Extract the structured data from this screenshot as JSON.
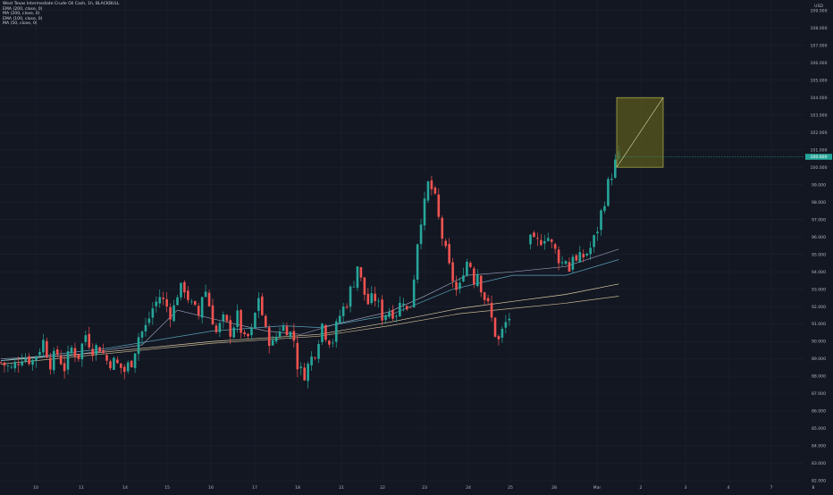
{
  "legend": {
    "title": "West Texas Intermediate Crude Oil Cash, 1h, BLACKBULL",
    "indicators": [
      "EMA (200, close, 0)",
      "MA (200, close, 0)",
      "EMA (100, close, 0)",
      "MA (50, close, 0)"
    ]
  },
  "currency": "USD",
  "current_price": "100.600",
  "colors": {
    "background": "#131722",
    "grid": "#1e2230",
    "up": "#26a69a",
    "down": "#ef5350",
    "ema200": "#d8c59a",
    "ma200": "#f5e3b5",
    "ema100": "#5fb0c8",
    "ma50": "#9fa7c2",
    "box_fill": "#5a5a1e",
    "box_stroke": "#b8b84a",
    "price_tag": "#26a69a"
  },
  "chart_data": {
    "type": "candlestick",
    "title": "West Texas Intermediate Crude Oil Cash, 1h, BLACKBULL",
    "x_ticks": [
      "10",
      "11",
      "14",
      "15",
      "16",
      "17",
      "18",
      "21",
      "22",
      "23",
      "24",
      "25",
      "28",
      "Mar",
      "2",
      "3",
      "4",
      "7",
      "8"
    ],
    "y_ticks": [
      "82.000",
      "83.000",
      "84.000",
      "85.000",
      "86.000",
      "87.000",
      "88.000",
      "89.000",
      "90.000",
      "91.000",
      "92.000",
      "93.000",
      "94.000",
      "95.000",
      "96.000",
      "97.000",
      "98.000",
      "99.000",
      "100.000",
      "101.000",
      "102.000",
      "103.000",
      "104.000",
      "105.000",
      "106.000",
      "107.000",
      "108.000",
      "109.000"
    ],
    "ylim": [
      81.8,
      109.5
    ],
    "grid": true,
    "close_path": [
      [
        0,
        88.8
      ],
      [
        3,
        88.4
      ],
      [
        6,
        89.2
      ],
      [
        9,
        88.9
      ],
      [
        12,
        90.0
      ],
      [
        14,
        88.8
      ],
      [
        16,
        89.3
      ],
      [
        18,
        88.5
      ],
      [
        20,
        89.6
      ],
      [
        22,
        89.2
      ],
      [
        24,
        90.4
      ],
      [
        26,
        89.6
      ],
      [
        28,
        89.7
      ],
      [
        30,
        88.9
      ],
      [
        32,
        88.8
      ],
      [
        34,
        88.5
      ],
      [
        35,
        88.3
      ],
      [
        37,
        88.9
      ],
      [
        39,
        90.3
      ],
      [
        41,
        90.8
      ],
      [
        43,
        91.9
      ],
      [
        45,
        92.6
      ],
      [
        47,
        92.0
      ],
      [
        48.5,
        91.5
      ],
      [
        50,
        92.8
      ],
      [
        52,
        93.1
      ],
      [
        54,
        92.0
      ],
      [
        56,
        91.5
      ],
      [
        57.5,
        93.3
      ],
      [
        59,
        92.1
      ],
      [
        61,
        90.5
      ],
      [
        63,
        91.2
      ],
      [
        65,
        90.6
      ],
      [
        67,
        91.4
      ],
      [
        69,
        90.0
      ],
      [
        71,
        90.5
      ],
      [
        73,
        92.6
      ],
      [
        75,
        90.5
      ],
      [
        77,
        89.8
      ],
      [
        79,
        90.8
      ],
      [
        81,
        90.8
      ],
      [
        83,
        90.1
      ],
      [
        84,
        88.7
      ],
      [
        85.5,
        88.0
      ],
      [
        87,
        88.6
      ],
      [
        89,
        89.5
      ],
      [
        91,
        91.0
      ],
      [
        92.5,
        90.2
      ],
      [
        94,
        90.1
      ],
      [
        96,
        91.5
      ],
      [
        98,
        92.3
      ],
      [
        100,
        93.5
      ],
      [
        101,
        94.4
      ],
      [
        102.5,
        93.0
      ],
      [
        104,
        92.2
      ],
      [
        106,
        92.5
      ],
      [
        108,
        91.5
      ],
      [
        110,
        91.8
      ],
      [
        112,
        91.7
      ],
      [
        114,
        92.5
      ],
      [
        115.5,
        91.3
      ],
      [
        117,
        93.8
      ],
      [
        118.5,
        96.8
      ],
      [
        120,
        97.8
      ],
      [
        121,
        99.0
      ],
      [
        122.5,
        98.6
      ],
      [
        124,
        97.0
      ],
      [
        125.5,
        95.5
      ],
      [
        127,
        94.2
      ],
      [
        128.5,
        93.3
      ],
      [
        129.5,
        92.5
      ],
      [
        131,
        94.2
      ],
      [
        132.5,
        94.8
      ],
      [
        134,
        93.6
      ],
      [
        135,
        94.0
      ],
      [
        136.5,
        92.8
      ],
      [
        138,
        92.0
      ],
      [
        140,
        90.5
      ],
      [
        141,
        90.0
      ],
      [
        142.5,
        90.8
      ],
      [
        143.5,
        91.3
      ],
      [
        144.5,
        91.5
      ]
    ],
    "gap_start": 145,
    "close_path_2": [
      [
        150,
        95.7
      ],
      [
        151.5,
        95.5
      ],
      [
        153,
        95.9
      ],
      [
        154.5,
        96.2
      ],
      [
        156,
        95.5
      ],
      [
        157.5,
        95.0
      ],
      [
        159,
        94.5
      ],
      [
        160,
        94.8
      ],
      [
        161,
        94.1
      ],
      [
        162,
        95.1
      ],
      [
        163,
        94.5
      ],
      [
        164.5,
        94.8
      ],
      [
        166,
        95.1
      ],
      [
        167.5,
        95.5
      ],
      [
        169,
        96.5
      ],
      [
        170.5,
        97.8
      ],
      [
        172,
        99.0
      ],
      [
        173.5,
        100.0
      ],
      [
        175,
        100.6
      ]
    ],
    "bars_total": 230,
    "series": [
      {
        "name": "EMA (200, close, 0)",
        "points": [
          [
            0,
            88.7
          ],
          [
            30,
            89.3
          ],
          [
            60,
            89.9
          ],
          [
            90,
            90.3
          ],
          [
            110,
            90.9
          ],
          [
            130,
            91.6
          ],
          [
            145,
            91.9
          ],
          [
            160,
            92.2
          ],
          [
            175,
            92.6
          ]
        ]
      },
      {
        "name": "MA (200, close, 0)",
        "points": [
          [
            0,
            88.9
          ],
          [
            30,
            89.4
          ],
          [
            60,
            90.0
          ],
          [
            90,
            90.4
          ],
          [
            110,
            91.1
          ],
          [
            130,
            91.9
          ],
          [
            145,
            92.3
          ],
          [
            160,
            92.7
          ],
          [
            175,
            93.3
          ]
        ]
      },
      {
        "name": "EMA (100, close, 0)",
        "points": [
          [
            0,
            88.9
          ],
          [
            30,
            89.6
          ],
          [
            60,
            90.6
          ],
          [
            80,
            90.9
          ],
          [
            90,
            90.8
          ],
          [
            110,
            91.5
          ],
          [
            128,
            93.0
          ],
          [
            145,
            93.8
          ],
          [
            160,
            93.8
          ],
          [
            175,
            94.7
          ]
        ]
      },
      {
        "name": "MA (50, close, 0)",
        "points": [
          [
            0,
            89.0
          ],
          [
            20,
            89.2
          ],
          [
            40,
            89.8
          ],
          [
            50,
            91.8
          ],
          [
            60,
            91.3
          ],
          [
            75,
            90.6
          ],
          [
            85,
            90.4
          ],
          [
            95,
            91.0
          ],
          [
            110,
            91.7
          ],
          [
            120,
            92.6
          ],
          [
            132,
            93.8
          ],
          [
            145,
            94.0
          ],
          [
            160,
            94.3
          ],
          [
            175,
            95.3
          ]
        ]
      }
    ],
    "annotation_box": {
      "bar_start": 175,
      "bar_end": 188,
      "top": 104.0,
      "bottom": 100.0
    }
  }
}
